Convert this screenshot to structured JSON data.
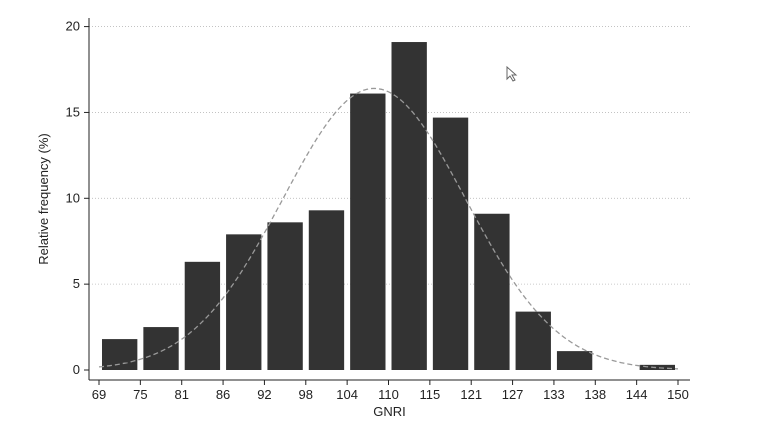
{
  "chart_data": {
    "type": "bar",
    "subtype": "histogram",
    "title": "",
    "xlabel": "GNRI",
    "ylabel": "Relative frequency (%)",
    "x_ticks": [
      "69",
      "75",
      "81",
      "86",
      "92",
      "98",
      "104",
      "110",
      "115",
      "121",
      "127",
      "133",
      "138",
      "144",
      "150"
    ],
    "y_ticks": [
      "0",
      "5",
      "10",
      "15",
      "20"
    ],
    "ylim": [
      0,
      20.5
    ],
    "grid": true,
    "bins": [
      {
        "start": "69",
        "end": "75",
        "value": 1.8
      },
      {
        "start": "75",
        "end": "81",
        "value": 2.5
      },
      {
        "start": "81",
        "end": "86",
        "value": 6.3
      },
      {
        "start": "86",
        "end": "92",
        "value": 7.9
      },
      {
        "start": "92",
        "end": "98",
        "value": 8.6
      },
      {
        "start": "98",
        "end": "104",
        "value": 9.3
      },
      {
        "start": "104",
        "end": "110",
        "value": 16.1
      },
      {
        "start": "110",
        "end": "115",
        "value": 19.1
      },
      {
        "start": "115",
        "end": "121",
        "value": 14.7
      },
      {
        "start": "121",
        "end": "127",
        "value": 9.1
      },
      {
        "start": "127",
        "end": "133",
        "value": 3.4
      },
      {
        "start": "133",
        "end": "138",
        "value": 1.1
      },
      {
        "start": "138",
        "end": "144",
        "value": 0
      },
      {
        "start": "144",
        "end": "150",
        "value": 0.3
      }
    ],
    "normal_curve": {
      "mean": 107.5,
      "sd": 12.8,
      "peak": 16.4,
      "style": "dashed",
      "color": "#999999"
    },
    "bar_color": "#333333"
  }
}
